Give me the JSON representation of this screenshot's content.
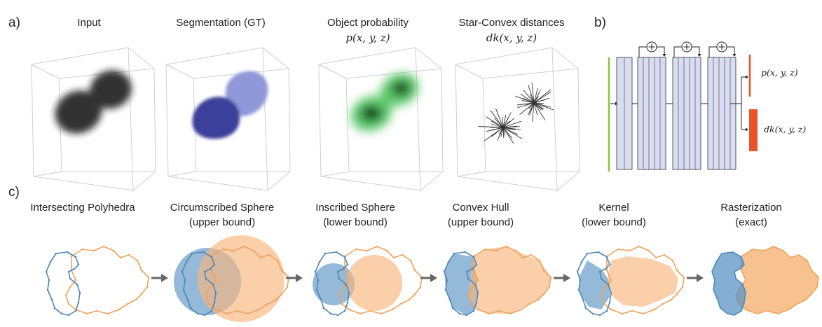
{
  "panel_labels": {
    "a": "a)",
    "b": "b)",
    "c": "c)"
  },
  "panel_a": {
    "titles": [
      {
        "main": "Input",
        "sub": ""
      },
      {
        "main": "Segmentation (GT)",
        "sub": ""
      },
      {
        "main": "Object probability",
        "sub": "p(x, y, z)"
      },
      {
        "main": "Star-Convex distances",
        "sub": "dk(x, y, z)"
      }
    ]
  },
  "panel_b": {
    "outputs": [
      "p(x, y, z)",
      "dk(x, y, z)"
    ],
    "add_symbol": "+"
  },
  "panel_c": {
    "steps": [
      {
        "title": "Intersecting Polyhedra",
        "subtitle": ""
      },
      {
        "title": "Circumscribed Sphere",
        "subtitle": "(upper bound)"
      },
      {
        "title": "Inscribed Sphere",
        "subtitle": "(lower bound)"
      },
      {
        "title": "Convex Hull",
        "subtitle": "(upper bound)"
      },
      {
        "title": "Kernel",
        "subtitle": "(lower bound)"
      },
      {
        "title": "Rasterization",
        "subtitle": "(exact)"
      }
    ]
  },
  "colors": {
    "blue_outline": "#4f88b8",
    "blue_fill": "#5b93c4",
    "orange_outline": "#f0a35c",
    "orange_fill": "#f7b67c",
    "seg_dark": "#3a3f9a",
    "seg_light": "#8f98d8",
    "green": "#3cb44a",
    "net_block": "#d9dcf2",
    "output_red": "#e8552a",
    "input_green": "#86c440",
    "arrow_gray": "#666666"
  }
}
